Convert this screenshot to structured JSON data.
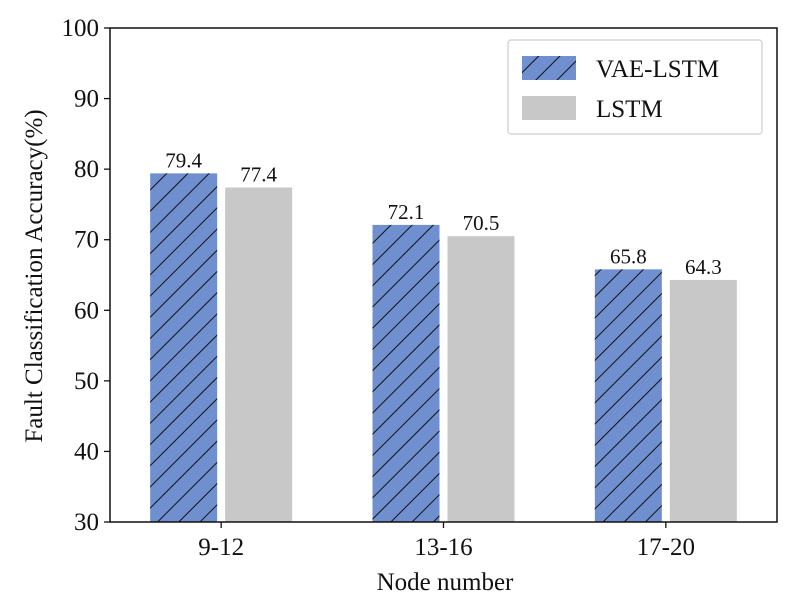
{
  "chart_data": {
    "type": "bar",
    "title": "",
    "xlabel": "Node number",
    "ylabel": "Fault Classification Accuracy(%)",
    "ylim": [
      30,
      100
    ],
    "yticks": [
      30,
      40,
      50,
      60,
      70,
      80,
      90,
      100
    ],
    "categories": [
      "9-12",
      "13-16",
      "17-20"
    ],
    "series": [
      {
        "name": "VAE-LSTM",
        "values": [
          79.4,
          72.1,
          65.8
        ],
        "color": "#6f8fcf",
        "hatch": "diagonal"
      },
      {
        "name": "LSTM",
        "values": [
          77.4,
          70.5,
          64.3
        ],
        "color": "#c8c8c8",
        "hatch": "none"
      }
    ],
    "data_labels": true,
    "grid": false,
    "legend_position": "top-right"
  }
}
